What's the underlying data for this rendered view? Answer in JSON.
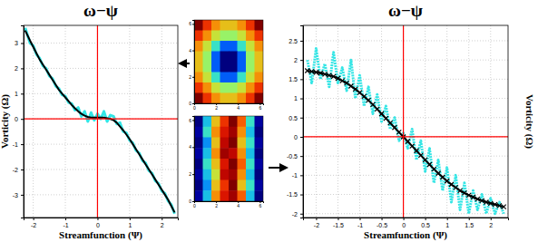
{
  "chart_data": [
    {
      "type": "line",
      "title": "ω−ψ",
      "x_label": "Streamfunction (Ψ)",
      "y_label": "Vorticity (Ω)",
      "xlim": [
        -2.3,
        2.5
      ],
      "xticks": [
        -2,
        -1,
        0,
        1,
        2
      ],
      "ylim": [
        -3.9,
        3.7
      ],
      "yticks": [
        -3,
        -2,
        -1,
        0,
        1,
        2,
        3
      ],
      "grid": true,
      "reference_lines": [
        {
          "axis": "x",
          "value": 0,
          "color": "#ff0000"
        },
        {
          "axis": "y",
          "value": 0,
          "color": "#ff0000"
        }
      ],
      "series": [
        {
          "type": "line",
          "color": "#33e5e5",
          "line_style": "solid",
          "x": [
            -2.25,
            -2.1,
            -2.0,
            -1.9,
            -1.8,
            -1.7,
            -1.6,
            -1.5,
            -1.4,
            -1.3,
            -1.2,
            -1.1,
            -1.0,
            -0.9,
            -0.8,
            -0.7,
            -0.6,
            -0.5,
            -0.4,
            -0.3,
            -0.2,
            -0.1,
            0.0,
            0.1,
            0.2,
            0.3,
            0.4,
            0.5,
            0.6,
            0.7,
            0.8,
            0.9,
            1.0,
            1.1,
            1.2,
            1.3,
            1.4,
            1.5,
            1.6,
            1.7,
            1.8,
            1.9,
            2.0,
            2.1,
            2.2,
            2.3,
            2.4
          ],
          "values": [
            3.6,
            3.0,
            2.9,
            2.55,
            2.4,
            2.1,
            2.0,
            1.7,
            1.6,
            1.3,
            1.2,
            0.95,
            0.9,
            0.65,
            0.6,
            0.35,
            0.45,
            0.1,
            0.3,
            -0.1,
            0.25,
            -0.05,
            0.2,
            0.0,
            0.3,
            -0.1,
            0.15,
            0.1,
            -0.2,
            -0.15,
            -0.5,
            -0.55,
            -0.85,
            -0.95,
            -1.25,
            -1.35,
            -1.65,
            -1.75,
            -2.05,
            -2.15,
            -2.45,
            -2.55,
            -2.85,
            -2.95,
            -3.25,
            -3.4,
            -3.75
          ]
        },
        {
          "type": "line",
          "color": "#000000",
          "line_style": "solid",
          "x": [
            -2.25,
            -2.1,
            -2.0,
            -1.9,
            -1.8,
            -1.7,
            -1.6,
            -1.5,
            -1.4,
            -1.3,
            -1.2,
            -1.1,
            -1.0,
            -0.9,
            -0.8,
            -0.7,
            -0.6,
            -0.5,
            -0.4,
            -0.3,
            -0.2,
            -0.1,
            0.0,
            0.1,
            0.2,
            0.3,
            0.4,
            0.5,
            0.6,
            0.7,
            0.8,
            0.9,
            1.0,
            1.1,
            1.2,
            1.3,
            1.4,
            1.5,
            1.6,
            1.7,
            1.8,
            1.9,
            2.0,
            2.1,
            2.2,
            2.3,
            2.4
          ],
          "values": [
            3.5,
            3.1,
            2.85,
            2.6,
            2.35,
            2.15,
            1.95,
            1.75,
            1.55,
            1.35,
            1.15,
            1.0,
            0.85,
            0.7,
            0.55,
            0.42,
            0.3,
            0.2,
            0.13,
            0.08,
            0.05,
            0.05,
            0.05,
            0.05,
            0.05,
            0.03,
            0.0,
            -0.05,
            -0.15,
            -0.3,
            -0.45,
            -0.62,
            -0.8,
            -1.0,
            -1.2,
            -1.4,
            -1.6,
            -1.8,
            -2.0,
            -2.2,
            -2.4,
            -2.6,
            -2.8,
            -3.0,
            -3.2,
            -3.45,
            -3.7
          ]
        }
      ]
    },
    {
      "type": "line",
      "title": "ω−ψ",
      "x_label": "Streamfunction (Ψ)",
      "y_label": "Vorticity (Ω)",
      "xlim": [
        -2.3,
        2.4
      ],
      "xticks": [
        -2,
        -1.5,
        -1,
        -0.5,
        0,
        0.5,
        1,
        1.5,
        2
      ],
      "ylim": [
        -2.1,
        2.9
      ],
      "yticks": [
        -2,
        -1.5,
        -1,
        -0.5,
        0,
        0.5,
        1,
        1.5,
        2,
        2.5
      ],
      "grid": true,
      "reference_lines": [
        {
          "axis": "x",
          "value": 0,
          "color": "#ff0000"
        },
        {
          "axis": "y",
          "value": 0,
          "color": "#ff0000"
        }
      ],
      "series": [
        {
          "type": "line",
          "color": "#33e5e5",
          "line_style": "dotted",
          "x": [
            -2.2,
            -2.1,
            -2.0,
            -1.9,
            -1.8,
            -1.7,
            -1.6,
            -1.5,
            -1.4,
            -1.3,
            -1.2,
            -1.1,
            -1.0,
            -0.9,
            -0.8,
            -0.7,
            -0.6,
            -0.5,
            -0.4,
            -0.3,
            -0.2,
            -0.1,
            0.0,
            0.1,
            0.2,
            0.3,
            0.4,
            0.5,
            0.6,
            0.7,
            0.8,
            0.9,
            1.0,
            1.1,
            1.2,
            1.3,
            1.4,
            1.5,
            1.6,
            1.7,
            1.8,
            1.9,
            2.0,
            2.1,
            2.2,
            2.3
          ],
          "values": [
            2.0,
            1.4,
            2.3,
            1.5,
            1.9,
            1.3,
            2.2,
            1.4,
            1.8,
            1.2,
            2.0,
            1.0,
            1.6,
            0.8,
            1.3,
            0.6,
            1.1,
            0.4,
            0.8,
            0.2,
            0.5,
            -0.1,
            0.1,
            -0.3,
            0.2,
            -0.6,
            -0.1,
            -0.9,
            -0.3,
            -1.2,
            -0.6,
            -1.4,
            -0.8,
            -1.7,
            -1.0,
            -1.9,
            -1.2,
            -2.0,
            -1.4,
            -1.9,
            -1.5,
            -2.0,
            -1.6,
            -2.0,
            -1.7,
            -2.0
          ]
        },
        {
          "type": "line",
          "color": "#000000",
          "line_style": "solid",
          "marker": "x",
          "x": [
            -2.2,
            -2.1,
            -2.0,
            -1.9,
            -1.8,
            -1.7,
            -1.6,
            -1.5,
            -1.4,
            -1.3,
            -1.2,
            -1.1,
            -1.0,
            -0.9,
            -0.8,
            -0.7,
            -0.6,
            -0.5,
            -0.4,
            -0.3,
            -0.2,
            -0.1,
            0.0,
            0.1,
            0.2,
            0.3,
            0.4,
            0.5,
            0.6,
            0.7,
            0.8,
            0.9,
            1.0,
            1.1,
            1.2,
            1.3,
            1.4,
            1.5,
            1.6,
            1.7,
            1.8,
            1.9,
            2.0,
            2.1,
            2.2,
            2.3
          ],
          "values": [
            1.72,
            1.7,
            1.68,
            1.66,
            1.63,
            1.6,
            1.57,
            1.52,
            1.46,
            1.4,
            1.32,
            1.24,
            1.15,
            1.05,
            0.95,
            0.84,
            0.72,
            0.6,
            0.48,
            0.36,
            0.24,
            0.12,
            0.0,
            -0.12,
            -0.24,
            -0.36,
            -0.48,
            -0.6,
            -0.72,
            -0.84,
            -0.95,
            -1.05,
            -1.15,
            -1.24,
            -1.32,
            -1.4,
            -1.46,
            -1.52,
            -1.57,
            -1.62,
            -1.66,
            -1.7,
            -1.73,
            -1.76,
            -1.79,
            -1.82
          ]
        }
      ]
    },
    {
      "type": "heatmap",
      "xlim": [
        0,
        6.3
      ],
      "xticks": [
        0,
        2,
        4,
        6
      ],
      "ylim": [
        0,
        6.3
      ],
      "yticks": [
        0,
        2,
        4,
        6
      ],
      "cells": [
        [
          0.9,
          0.5,
          0.3,
          0.2,
          0.2,
          0.3,
          0.5,
          0.9
        ],
        [
          0.5,
          0.3,
          0.1,
          0.0,
          0.0,
          0.1,
          0.3,
          0.5
        ],
        [
          0.3,
          0.1,
          -0.2,
          -0.5,
          -0.5,
          -0.2,
          0.1,
          0.3
        ],
        [
          0.2,
          0.0,
          -0.5,
          -1.0,
          -1.0,
          -0.5,
          0.0,
          0.2
        ],
        [
          0.2,
          0.0,
          -0.5,
          -1.0,
          -1.0,
          -0.5,
          0.0,
          0.2
        ],
        [
          0.3,
          0.1,
          -0.2,
          -0.5,
          -0.5,
          -0.2,
          0.1,
          0.3
        ],
        [
          0.5,
          0.3,
          0.1,
          0.0,
          0.0,
          0.1,
          0.3,
          0.5
        ],
        [
          0.9,
          0.5,
          0.3,
          0.2,
          0.2,
          0.3,
          0.5,
          0.9
        ]
      ]
    },
    {
      "type": "heatmap",
      "xlim": [
        0,
        6.3
      ],
      "xticks": [
        0,
        2,
        4,
        6
      ],
      "ylim": [
        0,
        6.3
      ],
      "yticks": [
        0,
        2,
        4,
        6
      ],
      "cells": [
        [
          -1.0,
          -0.3,
          0.2,
          0.5,
          0.9,
          0.4,
          -0.2,
          -0.9
        ],
        [
          -0.9,
          -0.2,
          0.3,
          0.6,
          0.8,
          0.3,
          -0.3,
          -1.0
        ],
        [
          -1.0,
          -0.4,
          0.2,
          0.7,
          0.9,
          0.2,
          -0.2,
          -0.9
        ],
        [
          -0.9,
          -0.3,
          0.3,
          0.8,
          0.7,
          0.3,
          -0.3,
          -1.0
        ],
        [
          -1.0,
          -0.2,
          0.2,
          0.6,
          0.9,
          0.4,
          -0.2,
          -0.9
        ],
        [
          -0.9,
          -0.3,
          0.1,
          0.7,
          0.8,
          0.3,
          -0.3,
          -1.0
        ],
        [
          -1.0,
          -0.4,
          0.2,
          0.5,
          0.9,
          0.2,
          -0.2,
          -0.9
        ],
        [
          -0.9,
          -0.3,
          0.3,
          0.6,
          0.8,
          0.4,
          -0.3,
          -1.0
        ]
      ]
    }
  ]
}
